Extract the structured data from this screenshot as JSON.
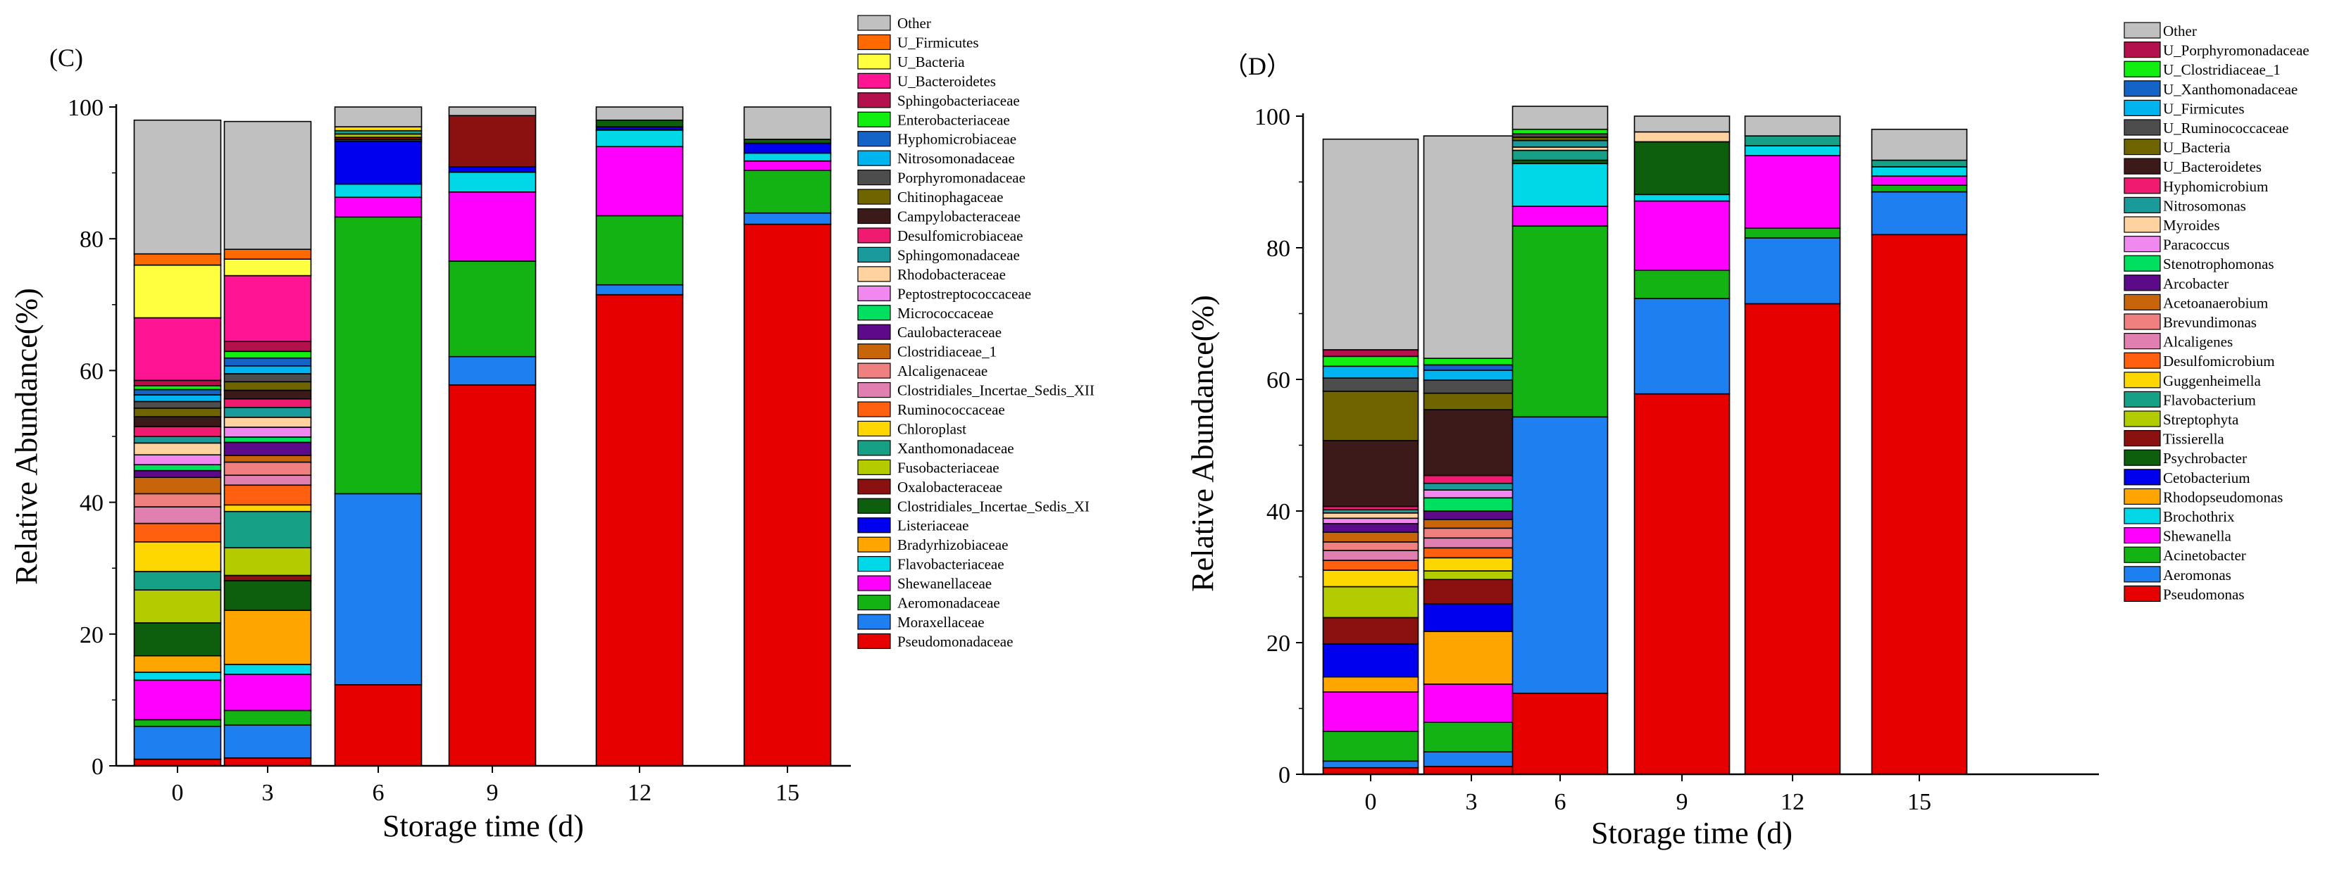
{
  "chart_data": [
    {
      "type": "bar",
      "stacked": true,
      "panel_label": "(C)",
      "xlabel": "Storage time (d)",
      "ylabel": "Relative Abundance(%)",
      "ylim": [
        0,
        100
      ],
      "yticks": [
        "0",
        "20",
        "40",
        "60",
        "80",
        "100"
      ],
      "categories": [
        "0",
        "3",
        "6",
        "9",
        "12",
        "15"
      ],
      "legend_position": "right",
      "series": [
        {
          "name": "Pseudomonadaceae",
          "color": "#e60000",
          "values": [
            1.0,
            1.2,
            12.3,
            57.8,
            71.5,
            82.2
          ]
        },
        {
          "name": "Moraxellaceae",
          "color": "#1e7ff0",
          "values": [
            5.0,
            5.0,
            29.0,
            4.3,
            1.5,
            1.7
          ]
        },
        {
          "name": "Aeromonadaceae",
          "color": "#12b312",
          "values": [
            1.0,
            2.2,
            42.0,
            14.5,
            10.5,
            6.5
          ]
        },
        {
          "name": "Shewanellaceae",
          "color": "#ff00ff",
          "values": [
            6.0,
            5.5,
            3.0,
            10.5,
            10.5,
            1.4
          ]
        },
        {
          "name": "Flavobacteriaceae",
          "color": "#00d8e8",
          "values": [
            1.2,
            1.5,
            2.0,
            3.0,
            2.5,
            1.2
          ]
        },
        {
          "name": "Bradyrhizobiaceae",
          "color": "#ffa500",
          "values": [
            2.5,
            8.2,
            0,
            0,
            0,
            0
          ]
        },
        {
          "name": "Listeriaceae",
          "color": "#0000ee",
          "values": [
            0,
            0,
            6.5,
            0.8,
            0.5,
            1.5
          ]
        },
        {
          "name": "Clostridiales_Incertae_Sedis_XI",
          "color": "#0d5e0d",
          "values": [
            5.0,
            4.5,
            0.3,
            0,
            1.0,
            0.6
          ]
        },
        {
          "name": "Oxalobacteraceae",
          "color": "#8b1010",
          "values": [
            0,
            0.8,
            0.3,
            7.8,
            0,
            0
          ]
        },
        {
          "name": "Fusobacteriaceae",
          "color": "#b2cc00",
          "values": [
            5.0,
            4.2,
            0.5,
            0,
            0,
            0
          ]
        },
        {
          "name": "Xanthomonadaceae",
          "color": "#16a085",
          "values": [
            2.8,
            5.5,
            0.5,
            0,
            0,
            0
          ]
        },
        {
          "name": "Chloroplast",
          "color": "#ffd700",
          "values": [
            4.5,
            1.0,
            0.6,
            0,
            0,
            0
          ]
        },
        {
          "name": "Ruminococcaceae",
          "color": "#ff6010",
          "values": [
            2.8,
            3.0,
            0,
            0,
            0,
            0
          ]
        },
        {
          "name": "Clostridiales_Incertae_Sedis_XII",
          "color": "#e07fb0",
          "values": [
            2.5,
            1.5,
            0,
            0,
            0,
            0
          ]
        },
        {
          "name": "Alcaligenaceae",
          "color": "#f08080",
          "values": [
            2.0,
            2.0,
            0,
            0,
            0,
            0
          ]
        },
        {
          "name": "Clostridiaceae_1",
          "color": "#c8640a",
          "values": [
            2.5,
            1.0,
            0,
            0,
            0,
            0
          ]
        },
        {
          "name": "Caulobacteraceae",
          "color": "#5c0a8a",
          "values": [
            1.0,
            2.0,
            0,
            0,
            0,
            0
          ]
        },
        {
          "name": "Micrococcaceae",
          "color": "#00e060",
          "values": [
            0.9,
            0.8,
            0,
            0,
            0,
            0
          ]
        },
        {
          "name": "Peptostreptococcaceae",
          "color": "#f088f0",
          "values": [
            1.5,
            1.5,
            0,
            0,
            0,
            0
          ]
        },
        {
          "name": "Rhodobacteraceae",
          "color": "#ffd2a0",
          "values": [
            1.8,
            1.5,
            0,
            0,
            0,
            0
          ]
        },
        {
          "name": "Sphingomonadaceae",
          "color": "#1a9a9a",
          "values": [
            1.0,
            1.5,
            0,
            0,
            0,
            0
          ]
        },
        {
          "name": "Desulfomicrobiaceae",
          "color": "#f01a70",
          "values": [
            1.5,
            1.3,
            0,
            0,
            0,
            0
          ]
        },
        {
          "name": "Campylobacteraceae",
          "color": "#3c1a1a",
          "values": [
            1.5,
            1.3,
            0,
            0,
            0,
            0
          ]
        },
        {
          "name": "Chitinophagaceae",
          "color": "#6e6400",
          "values": [
            1.3,
            1.3,
            0,
            0,
            0,
            0
          ]
        },
        {
          "name": "Porphyromonadaceae",
          "color": "#4d4d4d",
          "values": [
            1.0,
            1.2,
            0,
            0,
            0,
            0
          ]
        },
        {
          "name": "Nitrosomonadaceae",
          "color": "#00b4f0",
          "values": [
            1.0,
            1.2,
            0,
            0,
            0,
            0
          ]
        },
        {
          "name": "Hyphomicrobiaceae",
          "color": "#1464c8",
          "values": [
            0.8,
            1.2,
            0,
            0,
            0,
            0
          ]
        },
        {
          "name": "Enterobacteriaceae",
          "color": "#10ef10",
          "values": [
            0.6,
            1.0,
            0,
            0,
            0,
            0
          ]
        },
        {
          "name": "Sphingobacteriaceae",
          "color": "#b4104e",
          "values": [
            0.8,
            1.5,
            0,
            0,
            0,
            0
          ]
        },
        {
          "name": "U_Bacteroidetes",
          "color": "#ff1493",
          "values": [
            9.5,
            10.0,
            0,
            0,
            0,
            0
          ]
        },
        {
          "name": "U_Bacteria",
          "color": "#ffff40",
          "values": [
            8.0,
            2.5,
            0,
            0,
            0,
            0
          ]
        },
        {
          "name": "U_Firmicutes",
          "color": "#ff6a00",
          "values": [
            1.7,
            1.5,
            0,
            0,
            0,
            0
          ]
        },
        {
          "name": "Other",
          "color": "#c0c0c0",
          "values": [
            20.3,
            19.4,
            3.0,
            1.3,
            2.0,
            4.9
          ]
        }
      ]
    },
    {
      "type": "bar",
      "stacked": true,
      "panel_label": "（D）",
      "xlabel": "Storage time (d)",
      "ylabel": "Relative Abundance(%)",
      "ylim": [
        0,
        100
      ],
      "yticks": [
        "0",
        "20",
        "40",
        "60",
        "80",
        "100"
      ],
      "categories": [
        "0",
        "3",
        "6",
        "9",
        "12",
        "15"
      ],
      "legend_position": "right",
      "series": [
        {
          "name": "Pseudomonas",
          "color": "#e60000",
          "values": [
            1.0,
            1.2,
            12.3,
            57.8,
            71.5,
            82.0
          ]
        },
        {
          "name": "Aeromonas",
          "color": "#1e7ff0",
          "values": [
            1.0,
            2.2,
            42.0,
            14.5,
            10.0,
            6.5
          ]
        },
        {
          "name": "Acinetobacter",
          "color": "#12b312",
          "values": [
            4.5,
            4.5,
            29.0,
            4.3,
            1.5,
            1.0
          ]
        },
        {
          "name": "Shewanella",
          "color": "#ff00ff",
          "values": [
            6.0,
            5.8,
            3.0,
            10.5,
            11.0,
            1.4
          ]
        },
        {
          "name": "Brochothrix",
          "color": "#00d8e8",
          "values": [
            0,
            0,
            6.5,
            1.0,
            1.5,
            1.4
          ]
        },
        {
          "name": "Rhodopseudomonas",
          "color": "#ffa500",
          "values": [
            2.3,
            8.0,
            0,
            0,
            0,
            0
          ]
        },
        {
          "name": "Cetobacterium",
          "color": "#0000ee",
          "values": [
            5.0,
            4.2,
            0,
            0,
            0,
            0
          ]
        },
        {
          "name": "Psychrobacter",
          "color": "#0d5e0d",
          "values": [
            0,
            0,
            0.5,
            8.0,
            0,
            0
          ]
        },
        {
          "name": "Tissierella",
          "color": "#8b1010",
          "values": [
            4.0,
            3.7,
            0,
            0,
            0,
            0
          ]
        },
        {
          "name": "Streptophyta",
          "color": "#b2cc00",
          "values": [
            4.7,
            1.3,
            0,
            0,
            0,
            0
          ]
        },
        {
          "name": "Flavobacterium",
          "color": "#16a085",
          "values": [
            0,
            0,
            1.5,
            0,
            1.5,
            1.0
          ]
        },
        {
          "name": "Guggenheimella",
          "color": "#ffd700",
          "values": [
            2.5,
            2.0,
            0,
            0,
            0,
            0
          ]
        },
        {
          "name": "Desulfomicrobium",
          "color": "#ff6010",
          "values": [
            1.5,
            1.5,
            0,
            0,
            0,
            0
          ]
        },
        {
          "name": "Alcaligenes",
          "color": "#e07fb0",
          "values": [
            1.5,
            1.5,
            0,
            0,
            0,
            0
          ]
        },
        {
          "name": "Brevundimonas",
          "color": "#f08080",
          "values": [
            1.3,
            1.5,
            0,
            0,
            0,
            0
          ]
        },
        {
          "name": "Acetoanaerobium",
          "color": "#c8640a",
          "values": [
            1.5,
            1.3,
            0,
            0,
            0,
            0
          ]
        },
        {
          "name": "Arcobacter",
          "color": "#5c0a8a",
          "values": [
            1.3,
            1.3,
            0,
            0,
            0,
            0
          ]
        },
        {
          "name": "Stenotrophomonas",
          "color": "#00e060",
          "values": [
            0,
            2.0,
            0,
            0,
            0,
            0
          ]
        },
        {
          "name": "Paracoccus",
          "color": "#f088f0",
          "values": [
            0.8,
            1.2,
            0,
            0,
            0,
            0
          ]
        },
        {
          "name": "Myroides",
          "color": "#ffd2a0",
          "values": [
            0.8,
            0,
            0.5,
            1.5,
            0,
            0
          ]
        },
        {
          "name": "Nitrosomonas",
          "color": "#1a9a9a",
          "values": [
            0.5,
            1.0,
            1.0,
            0,
            0,
            0
          ]
        },
        {
          "name": "Hyphomicrobium",
          "color": "#f01a70",
          "values": [
            0.5,
            1.2,
            0,
            0,
            0,
            0
          ]
        },
        {
          "name": "U_Bacteroidetes",
          "color": "#3c1a1a",
          "values": [
            10.0,
            10.0,
            0,
            0,
            0,
            0
          ]
        },
        {
          "name": "U_Bacteria",
          "color": "#6e6400",
          "values": [
            7.5,
            2.5,
            0.5,
            0,
            0,
            0
          ]
        },
        {
          "name": "U_Ruminococcaceae",
          "color": "#4d4d4d",
          "values": [
            2.0,
            2.0,
            0.5,
            0,
            0,
            0
          ]
        },
        {
          "name": "U_Firmicutes",
          "color": "#00b4f0",
          "values": [
            1.8,
            1.5,
            0,
            0,
            0,
            0
          ]
        },
        {
          "name": "U_Xanthomonadaceae",
          "color": "#1464c8",
          "values": [
            0,
            0.8,
            0,
            0,
            0,
            0
          ]
        },
        {
          "name": "U_Clostridiaceae_1",
          "color": "#10ef10",
          "values": [
            1.5,
            1.0,
            0.7,
            0,
            0,
            0
          ]
        },
        {
          "name": "U_Porphyromonadaceae",
          "color": "#b4104e",
          "values": [
            1.0,
            0,
            0,
            0,
            0,
            0
          ]
        },
        {
          "name": "Other",
          "color": "#c0c0c0",
          "values": [
            32.0,
            33.8,
            3.5,
            2.4,
            3.0,
            4.7
          ]
        }
      ]
    }
  ]
}
